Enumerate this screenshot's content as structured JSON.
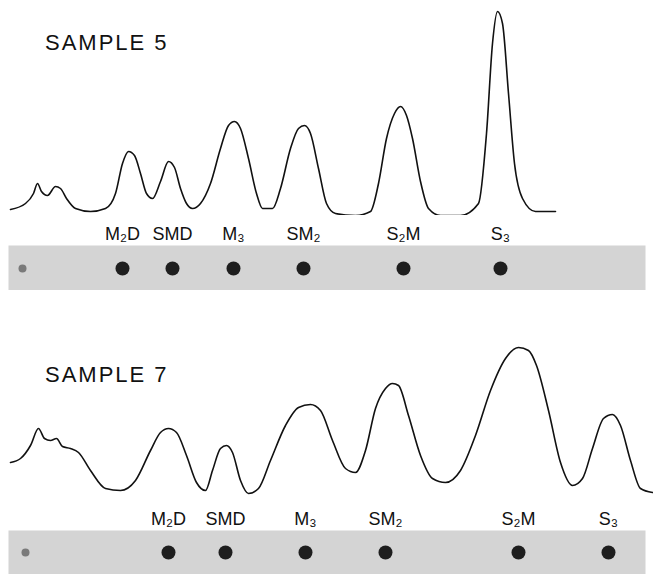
{
  "chart_data": [
    {
      "type": "line",
      "title": "SAMPLE 5",
      "color": "#111111",
      "tick_labels": false,
      "xlim": [
        0,
        653
      ],
      "ylim": [
        0,
        210
      ],
      "x": [
        10,
        25,
        33,
        37,
        41,
        47,
        55,
        60,
        66,
        75,
        90,
        105,
        115,
        122,
        128,
        134,
        140,
        146,
        152,
        160,
        168,
        174,
        180,
        186,
        192,
        200,
        210,
        220,
        228,
        234,
        240,
        248,
        256,
        262,
        272,
        280,
        290,
        298,
        304,
        310,
        318,
        326,
        335,
        355,
        370,
        378,
        386,
        394,
        400,
        406,
        412,
        420,
        428,
        440,
        460,
        478,
        486,
        492,
        497,
        502,
        508,
        514,
        522,
        535,
        555
      ],
      "values": [
        6,
        12,
        22,
        32,
        24,
        20,
        29,
        27,
        17,
        7,
        4,
        7,
        22,
        52,
        64,
        60,
        42,
        22,
        17,
        34,
        54,
        48,
        27,
        12,
        7,
        12,
        32,
        67,
        90,
        94,
        87,
        57,
        22,
        7,
        7,
        27,
        67,
        87,
        90,
        82,
        47,
        12,
        2,
        0,
        4,
        32,
        77,
        102,
        109,
        100,
        77,
        34,
        7,
        0,
        0,
        12,
        82,
        172,
        204,
        192,
        122,
        52,
        17,
        4,
        4
      ],
      "peaks": {
        "categories": [
          null,
          "M₂D",
          "SMD",
          "M₃",
          "SM₂",
          "S₂M",
          "S₃"
        ],
        "x": [
          22,
          122,
          172,
          233,
          303,
          403,
          500
        ]
      }
    },
    {
      "type": "line",
      "title": "SAMPLE 7",
      "color": "#111111",
      "tick_labels": false,
      "xlim": [
        0,
        653
      ],
      "ylim": [
        0,
        210
      ],
      "x": [
        10,
        20,
        30,
        38,
        44,
        50,
        56,
        62,
        70,
        78,
        90,
        105,
        120,
        135,
        150,
        160,
        168,
        176,
        186,
        196,
        205,
        212,
        220,
        226,
        232,
        240,
        248,
        258,
        270,
        285,
        298,
        310,
        320,
        332,
        345,
        355,
        365,
        375,
        385,
        392,
        398,
        408,
        420,
        432,
        445,
        460,
        475,
        490,
        505,
        518,
        528,
        536,
        548,
        560,
        572,
        582,
        592,
        603,
        612,
        620,
        630,
        640,
        652
      ],
      "values": [
        38,
        42,
        55,
        72,
        62,
        60,
        62,
        54,
        52,
        48,
        30,
        12,
        10,
        20,
        50,
        68,
        72,
        68,
        45,
        18,
        10,
        30,
        52,
        55,
        48,
        20,
        7,
        12,
        40,
        75,
        93,
        96,
        90,
        60,
        32,
        28,
        50,
        92,
        112,
        117,
        115,
        85,
        45,
        22,
        18,
        30,
        65,
        110,
        142,
        153,
        150,
        135,
        90,
        38,
        15,
        22,
        52,
        82,
        86,
        75,
        40,
        12,
        8
      ],
      "peaks": {
        "categories": [
          null,
          "M₂D",
          "SMD",
          "M₃",
          "SM₂",
          "S₂M",
          "S₃"
        ],
        "x": [
          25,
          168,
          225,
          305,
          385,
          518,
          608
        ]
      }
    }
  ]
}
